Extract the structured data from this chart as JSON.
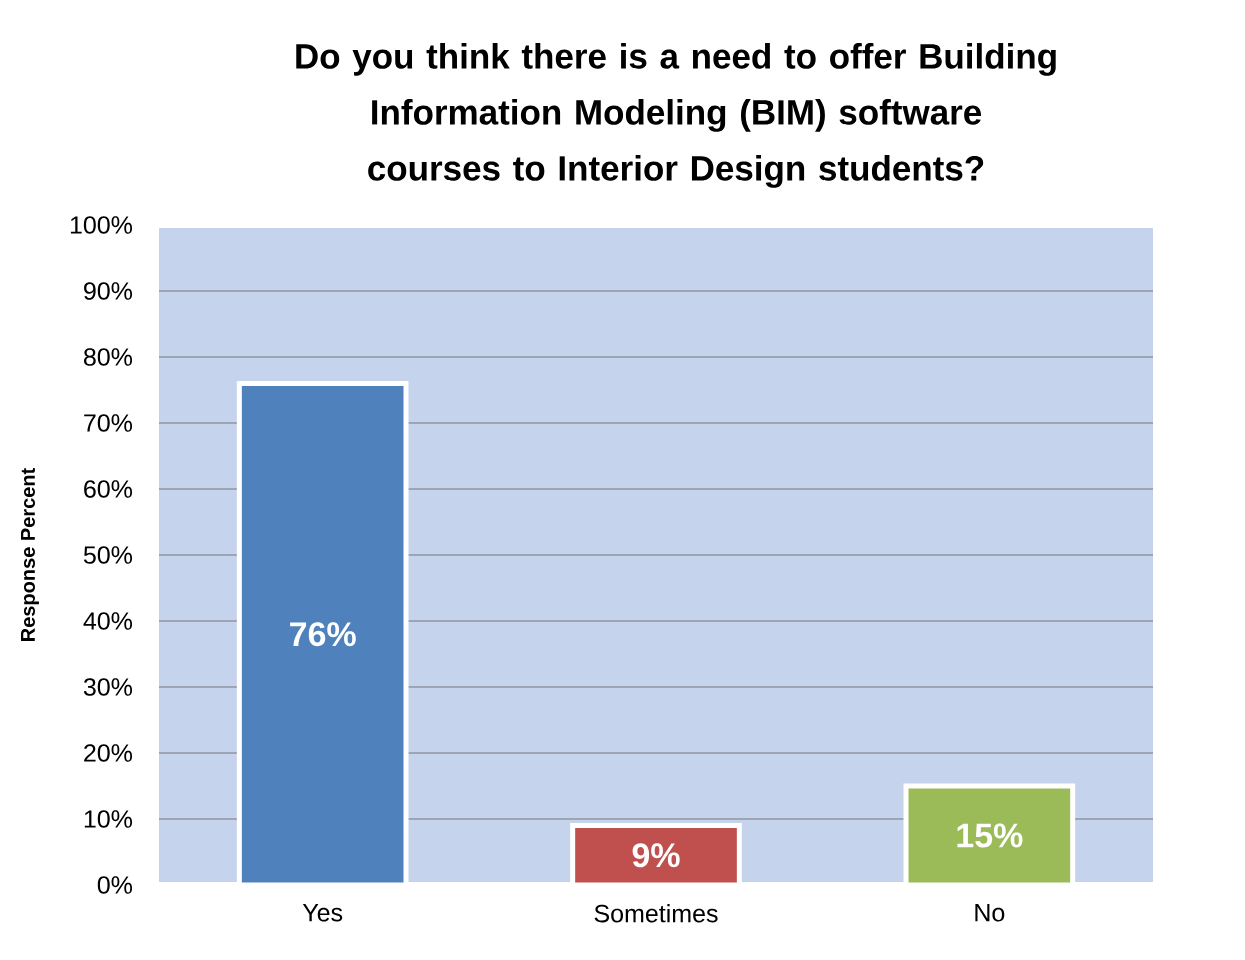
{
  "chart_data": {
    "type": "bar",
    "title": "Do you think there is a need to offer Building Information Modeling (BIM) software courses to Interior Design students?",
    "ylabel": "Response Percent",
    "categories": [
      "Yes",
      "Sometimes",
      "No"
    ],
    "values": [
      76,
      9,
      15
    ],
    "colors": [
      "#4f81bd",
      "#c0504d",
      "#9bbb59"
    ],
    "value_labels": [
      "76%",
      "9%",
      "15%"
    ],
    "ylim": [
      0,
      100
    ],
    "yticks": [
      {
        "value": 0,
        "label": "0%"
      },
      {
        "value": 10,
        "label": "10%"
      },
      {
        "value": 20,
        "label": "20%"
      },
      {
        "value": 30,
        "label": "30%"
      },
      {
        "value": 40,
        "label": "40%"
      },
      {
        "value": 50,
        "label": "50%"
      },
      {
        "value": 60,
        "label": "60%"
      },
      {
        "value": 70,
        "label": "70%"
      },
      {
        "value": 80,
        "label": "80%"
      },
      {
        "value": 90,
        "label": "90%"
      },
      {
        "value": 100,
        "label": "100%"
      }
    ],
    "grid": "y"
  }
}
